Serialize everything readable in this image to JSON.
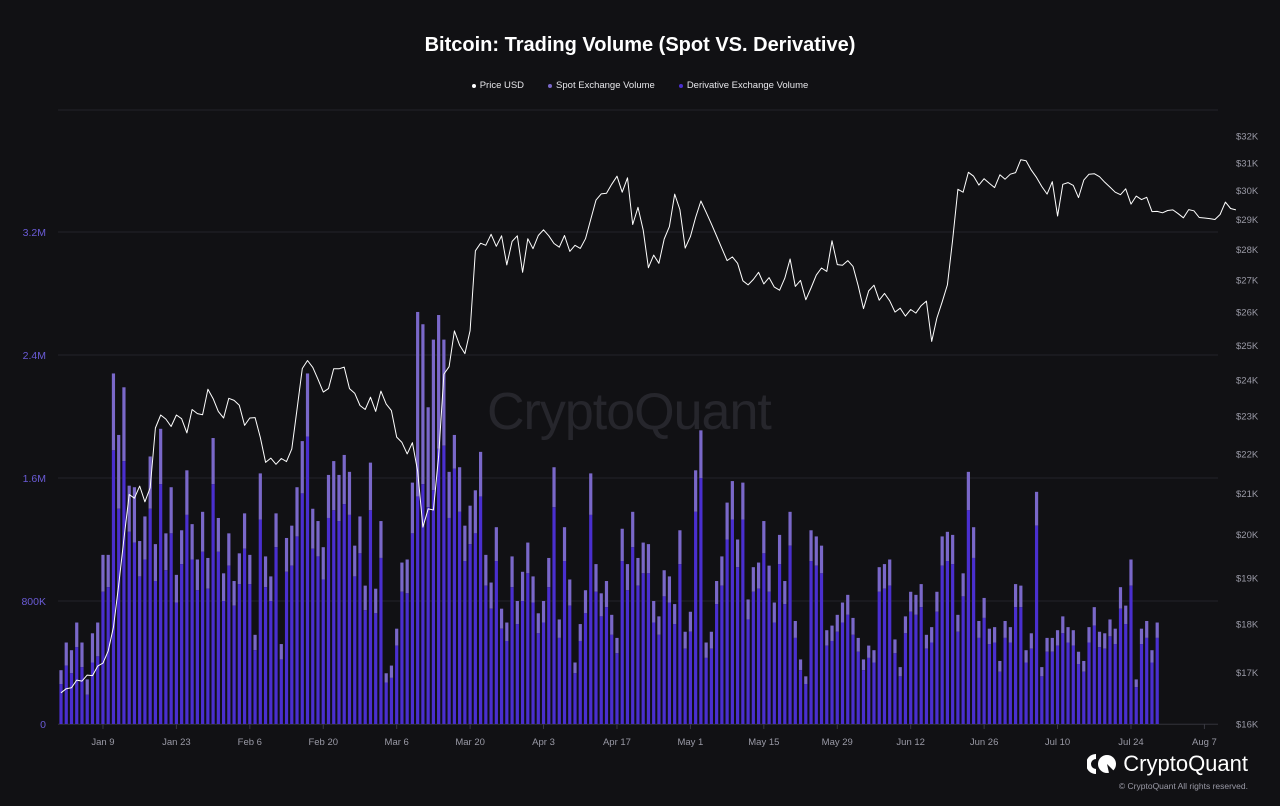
{
  "title": "Bitcoin: Trading Volume (Spot VS. Derivative)",
  "legend": [
    {
      "label": "Price USD",
      "color": "#ffffff"
    },
    {
      "label": "Spot Exchange Volume",
      "color": "#7a68c9"
    },
    {
      "label": "Derivative Exchange Volume",
      "color": "#4a2fcf"
    }
  ],
  "watermark": "CryptoQuant",
  "brand": {
    "name": "CryptoQuant",
    "copyright": "© CryptoQuant All rights reserved."
  },
  "colors": {
    "background": "#111114",
    "spot": "#7a68c9",
    "derivative": "#4a2fcf",
    "price": "#ffffff",
    "grid": "#24242a",
    "left_axis": "#6a5bd6",
    "right_axis": "#9a9aa6"
  },
  "chart_data": {
    "type": "bar+line",
    "title": "Bitcoin: Trading Volume (Spot VS. Derivative)",
    "xlabel": "",
    "ylabel_left": "Volume",
    "ylabel_right": "Price USD",
    "ylim_left": [
      0,
      3200000
    ],
    "left_ticks": [
      "0",
      "800K",
      "1.6M",
      "2.4M",
      "3.2M"
    ],
    "left_tick_values": [
      0,
      800000,
      1600000,
      2400000,
      3200000
    ],
    "right_ticks": [
      "$16K",
      "$17K",
      "$18K",
      "$19K",
      "$20K",
      "$21K",
      "$22K",
      "$23K",
      "$24K",
      "$25K",
      "$26K",
      "$27K",
      "$28K",
      "$29K",
      "$30K",
      "$31K",
      "$32K"
    ],
    "right_scale": "log",
    "ylim_right": [
      16000,
      32000
    ],
    "x_ticks": [
      "Jan 9",
      "Jan 23",
      "Feb 6",
      "Feb 20",
      "Mar 6",
      "Mar 20",
      "Apr 3",
      "Apr 17",
      "May 1",
      "May 15",
      "May 29",
      "Jun 12",
      "Jun 26",
      "Jul 10",
      "Jul 24",
      "Aug 7"
    ],
    "x_tick_day_index": [
      8,
      22,
      36,
      50,
      64,
      78,
      92,
      106,
      120,
      134,
      148,
      162,
      176,
      190,
      204,
      218
    ],
    "x_start": "Jan 1",
    "x_end": "Aug 9",
    "stacked": true,
    "grid": true,
    "legend_position": "top",
    "series": [
      {
        "name": "Derivative Exchange Volume",
        "type": "bar",
        "unit": "K",
        "values": [
          260,
          380,
          330,
          500,
          370,
          190,
          400,
          440,
          860,
          890,
          1780,
          1400,
          1710,
          1250,
          1180,
          960,
          1070,
          1400,
          930,
          1560,
          1000,
          1240,
          790,
          1040,
          1360,
          1070,
          870,
          1120,
          880,
          1560,
          1120,
          800,
          1030,
          770,
          910,
          1140,
          910,
          480,
          1330,
          890,
          800,
          1150,
          420,
          990,
          1030,
          1220,
          1500,
          1870,
          1140,
          1090,
          940,
          1340,
          1390,
          1320,
          1430,
          1360,
          960,
          1110,
          740,
          1390,
          720,
          1080,
          270,
          300,
          510,
          860,
          850,
          1240,
          1480,
          1560,
          1410,
          1520,
          1790,
          1810,
          1340,
          1660,
          1380,
          1060,
          1170,
          1240,
          1480,
          900,
          750,
          1060,
          620,
          540,
          890,
          650,
          800,
          980,
          790,
          590,
          660,
          890,
          1410,
          560,
          1060,
          770,
          330,
          540,
          720,
          1360,
          860,
          700,
          760,
          580,
          460,
          1060,
          870,
          1150,
          900,
          980,
          980,
          660,
          580,
          830,
          790,
          650,
          1040,
          490,
          600,
          1380,
          1600,
          430,
          490,
          780,
          900,
          1200,
          1330,
          1020,
          1330,
          680,
          860,
          880,
          1110,
          860,
          660,
          1040,
          780,
          1160,
          560,
          350,
          260,
          1060,
          1030,
          980,
          510,
          540,
          600,
          660,
          710,
          580,
          470,
          350,
          430,
          400,
          860,
          880,
          900,
          460,
          310,
          590,
          730,
          710,
          760,
          490,
          530,
          730,
          1030,
          1060,
          1040,
          600,
          830,
          1390,
          1080,
          560,
          690,
          520,
          530,
          340,
          560,
          530,
          760,
          760,
          400,
          490,
          1290,
          310,
          470,
          470,
          510,
          590,
          530,
          510,
          390,
          340,
          530,
          640,
          500,
          490,
          570,
          520,
          750,
          650,
          900,
          240,
          520,
          560,
          400,
          560
        ],
        "note": "approximate from pixel heights; daily Jan 1 – Aug 9"
      },
      {
        "name": "Spot Exchange Volume",
        "type": "bar",
        "unit": "K",
        "values": [
          90,
          150,
          150,
          160,
          160,
          100,
          190,
          220,
          240,
          210,
          500,
          480,
          480,
          300,
          360,
          230,
          280,
          340,
          240,
          360,
          240,
          300,
          180,
          220,
          290,
          230,
          200,
          260,
          200,
          300,
          220,
          180,
          210,
          160,
          200,
          230,
          190,
          100,
          300,
          200,
          160,
          220,
          100,
          220,
          260,
          320,
          340,
          410,
          260,
          230,
          210,
          280,
          320,
          300,
          320,
          280,
          200,
          240,
          160,
          310,
          160,
          240,
          60,
          80,
          110,
          190,
          220,
          330,
          1200,
          1040,
          650,
          980,
          870,
          690,
          300,
          220,
          290,
          230,
          250,
          280,
          290,
          200,
          170,
          220,
          130,
          120,
          200,
          150,
          190,
          200,
          170,
          130,
          140,
          190,
          260,
          120,
          220,
          170,
          70,
          110,
          150,
          270,
          180,
          150,
          170,
          130,
          100,
          210,
          170,
          230,
          180,
          200,
          190,
          140,
          120,
          170,
          170,
          130,
          220,
          110,
          130,
          270,
          310,
          100,
          110,
          150,
          190,
          240,
          250,
          180,
          240,
          130,
          160,
          170,
          210,
          170,
          130,
          190,
          150,
          220,
          110,
          70,
          50,
          200,
          190,
          180,
          100,
          100,
          110,
          130,
          130,
          110,
          90,
          70,
          80,
          80,
          160,
          160,
          170,
          90,
          60,
          110,
          130,
          130,
          150,
          90,
          100,
          130,
          190,
          190,
          190,
          110,
          150,
          250,
          200,
          110,
          130,
          100,
          100,
          70,
          110,
          100,
          150,
          140,
          80,
          100,
          220,
          60,
          90,
          90,
          100,
          110,
          100,
          100,
          80,
          70,
          100,
          120,
          100,
          100,
          110,
          100,
          140,
          120,
          170,
          50,
          100,
          110,
          80,
          100
        ]
      },
      {
        "name": "Price USD",
        "type": "line",
        "axis": "right",
        "unit": "USD",
        "values": [
          16600,
          16680,
          16700,
          16850,
          16830,
          16950,
          16940,
          17130,
          17190,
          17440,
          17940,
          18850,
          19900,
          20970,
          20880,
          21180,
          20790,
          21140,
          22680,
          23030,
          22920,
          22720,
          23030,
          22930,
          22550,
          23180,
          23070,
          23040,
          23740,
          23480,
          23130,
          22950,
          23490,
          23430,
          23300,
          22750,
          22950,
          22960,
          22430,
          21780,
          21890,
          21730,
          21880,
          21800,
          22130,
          23180,
          24330,
          24560,
          24360,
          24020,
          23660,
          23760,
          24320,
          24320,
          24370,
          23760,
          23630,
          23290,
          23180,
          23520,
          23130,
          23690,
          23330,
          23150,
          22440,
          22300,
          22000,
          22290,
          21550,
          20180,
          20620,
          20590,
          21930,
          24170,
          24380,
          25430,
          25010,
          24760,
          25440,
          27950,
          28200,
          28130,
          28500,
          28100,
          28450,
          27490,
          28260,
          28450,
          27250,
          28350,
          28020,
          28460,
          28650,
          28450,
          28190,
          28070,
          28460,
          27930,
          28130,
          28030,
          28350,
          29000,
          29670,
          29890,
          29910,
          30230,
          30520,
          29950,
          30460,
          28830,
          29420,
          28640,
          27400,
          27810,
          27540,
          28340,
          28760,
          29880,
          29340,
          28040,
          28420,
          29070,
          29640,
          29250,
          28850,
          28440,
          28030,
          27630,
          27750,
          27540,
          26980,
          26850,
          27020,
          27250,
          26880,
          27080,
          26780,
          26680,
          27060,
          27680,
          26800,
          26990,
          26380,
          26750,
          27160,
          27390,
          27280,
          28280,
          27500,
          27480,
          27630,
          27440,
          26820,
          26110,
          26660,
          26840,
          26370,
          26580,
          26350,
          26000,
          26120,
          25880,
          26080,
          25970,
          26200,
          26340,
          25120,
          25820,
          26320,
          26850,
          28300,
          30050,
          29950,
          30660,
          30520,
          30200,
          30430,
          30260,
          30110,
          30570,
          30410,
          30590,
          30650,
          31120,
          31080,
          30740,
          30470,
          30150,
          29880,
          30320,
          29120,
          30230,
          30290,
          30190,
          29760,
          30380,
          30590,
          30610,
          30500,
          30300,
          30130,
          29950,
          29860,
          30070,
          29530,
          29810,
          29690,
          29770,
          29270,
          29280,
          29230,
          29310,
          29330,
          29200,
          29060,
          29340,
          29300,
          29070,
          29050,
          29030,
          29000,
          29170,
          29600,
          29380,
          29330
        ]
      }
    ]
  }
}
